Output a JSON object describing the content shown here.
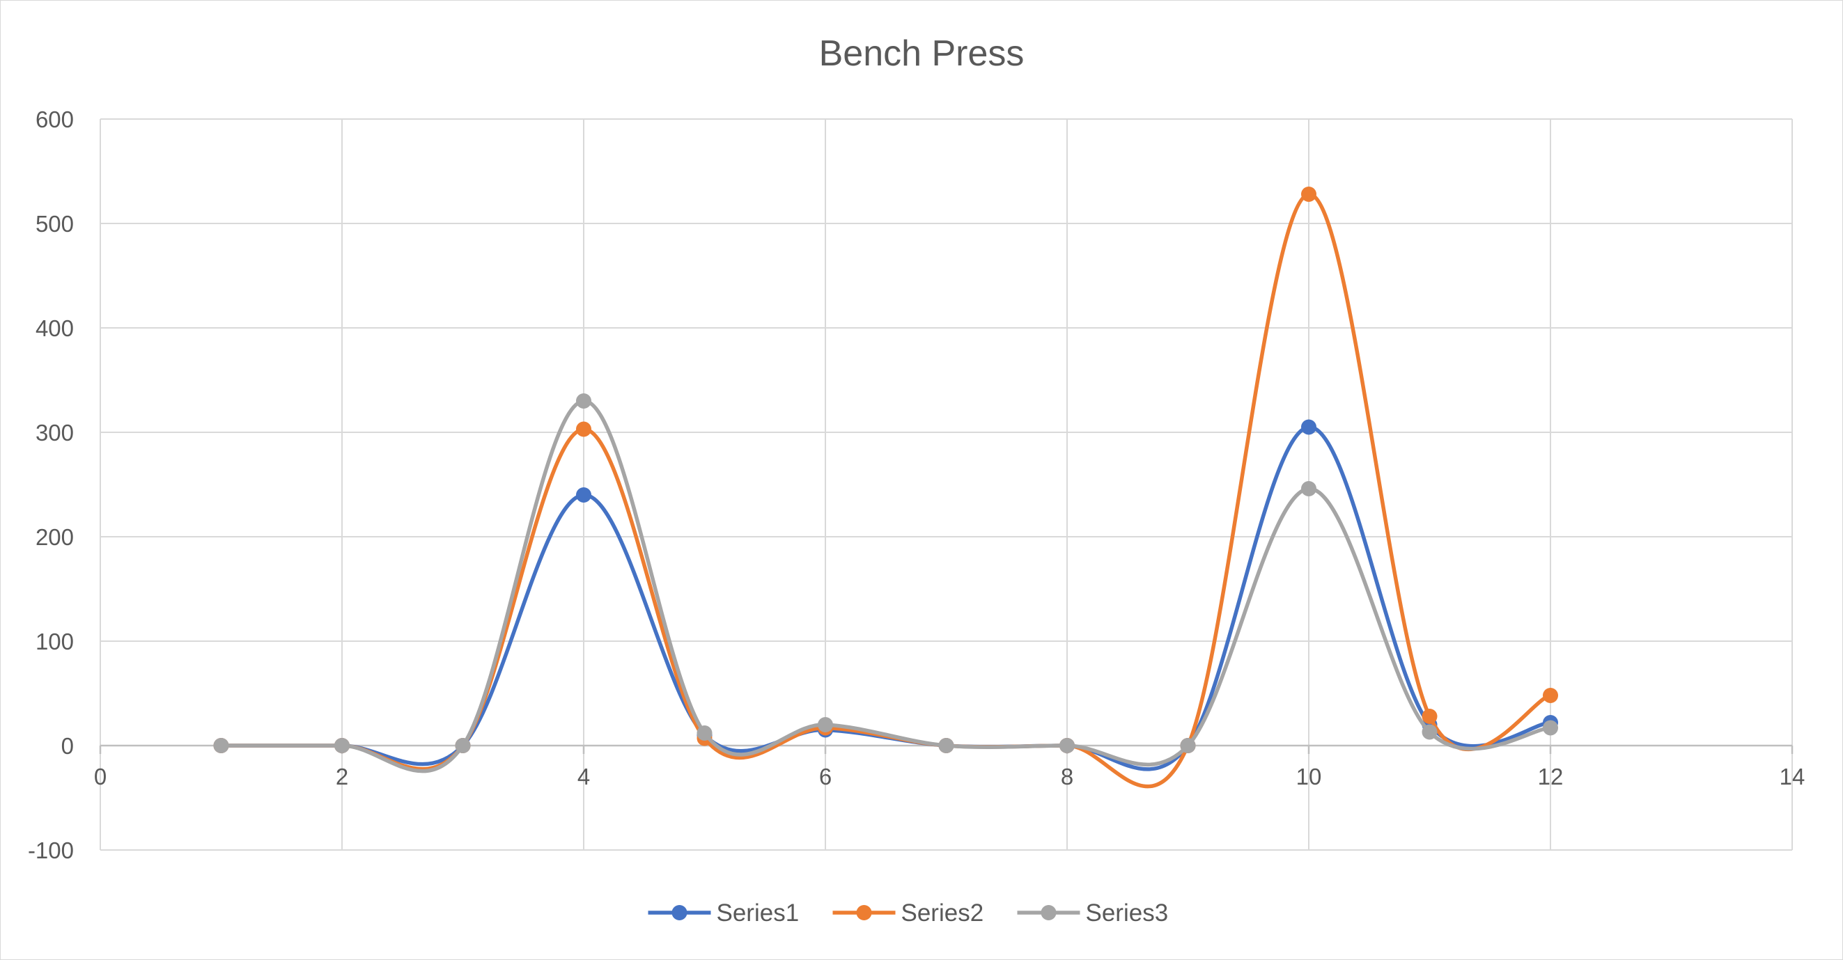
{
  "chart_data": {
    "type": "scatter",
    "style": "smooth-lines-with-markers",
    "title": "Bench Press",
    "xlabel": "",
    "ylabel": "",
    "xlim": [
      0,
      14
    ],
    "ylim": [
      -100,
      600
    ],
    "x_ticks": [
      0,
      2,
      4,
      6,
      8,
      10,
      12,
      14
    ],
    "y_ticks": [
      -100,
      0,
      100,
      200,
      300,
      400,
      500,
      600
    ],
    "grid": true,
    "legend_position": "bottom",
    "x": [
      1,
      2,
      3,
      4,
      5,
      6,
      7,
      8,
      9,
      10,
      11,
      12
    ],
    "series": [
      {
        "name": "Series1",
        "color": "#4472c4",
        "values": [
          0,
          0,
          0,
          240,
          10,
          15,
          0,
          0,
          0,
          305,
          20,
          22
        ]
      },
      {
        "name": "Series2",
        "color": "#ed7d31",
        "values": [
          0,
          0,
          0,
          303,
          7,
          17,
          0,
          0,
          0,
          528,
          28,
          48
        ]
      },
      {
        "name": "Series3",
        "color": "#a5a5a5",
        "values": [
          0,
          0,
          0,
          330,
          12,
          20,
          0,
          0,
          0,
          246,
          13,
          17
        ]
      }
    ]
  }
}
